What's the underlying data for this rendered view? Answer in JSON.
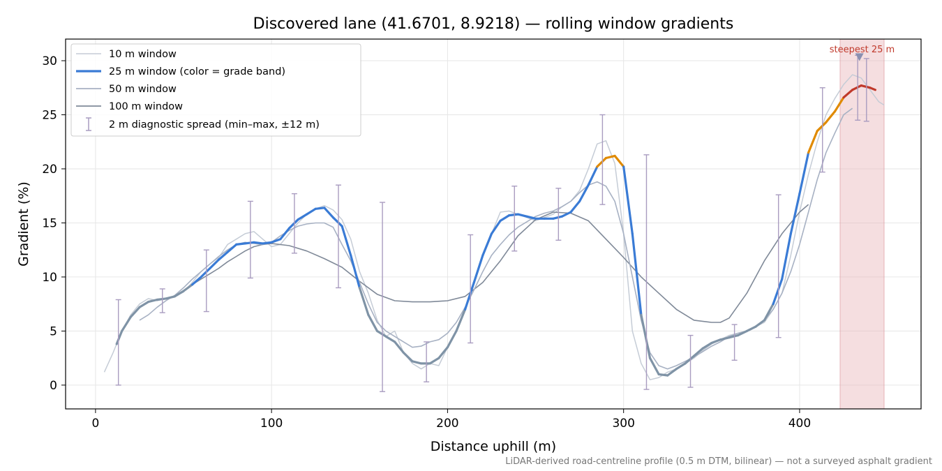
{
  "chart_data": {
    "type": "line",
    "title": "Discovered lane (41.6701, 8.9218) — rolling window gradients",
    "xlabel": "Distance uphill (m)",
    "ylabel": "Gradient (%)",
    "xlim": [
      -17,
      469
    ],
    "ylim": [
      -2.2,
      32
    ],
    "x_ticks": [
      0,
      100,
      200,
      300,
      400
    ],
    "y_ticks": [
      0,
      5,
      10,
      15,
      20,
      25,
      30
    ],
    "grid": true,
    "legend_position": "top-left",
    "footnote": "LiDAR-derived road-centreline profile (0.5 m DTM, bilinear) — not a surveyed asphalt gradient",
    "highlight": {
      "label": "steepest 25 m",
      "x_range": [
        423,
        448
      ],
      "marker_x": 434,
      "marker_y": 30.3,
      "color": "#e8b5bb"
    },
    "grade_band_colors": {
      "gentle": "#7f93a6",
      "moderate": "#3a7bd5",
      "steep": "#e08a00",
      "extreme": "#c0392b"
    },
    "series": [
      {
        "name": "10 m window",
        "color": "#c5ccd6",
        "x": [
          5,
          10,
          15,
          20,
          25,
          30,
          35,
          40,
          45,
          50,
          55,
          60,
          65,
          70,
          75,
          80,
          85,
          90,
          95,
          100,
          105,
          110,
          115,
          120,
          125,
          130,
          135,
          140,
          145,
          150,
          155,
          160,
          165,
          170,
          175,
          180,
          185,
          190,
          195,
          200,
          205,
          210,
          215,
          220,
          225,
          230,
          235,
          240,
          245,
          250,
          255,
          260,
          265,
          270,
          275,
          280,
          285,
          290,
          295,
          300,
          305,
          310,
          315,
          320,
          325,
          330,
          335,
          340,
          345,
          350,
          355,
          360,
          365,
          370,
          375,
          380,
          385,
          390,
          395,
          400,
          405,
          410,
          415,
          420,
          425,
          430,
          435,
          440,
          445,
          448
        ],
        "y": [
          1.2,
          3,
          5,
          6.5,
          7.5,
          8,
          7.8,
          8,
          8.2,
          8.6,
          9.5,
          10.5,
          11.2,
          11.8,
          13,
          13.5,
          14,
          14.2,
          13.5,
          12.8,
          13,
          14,
          15,
          15.8,
          16.3,
          16.6,
          16.2,
          15.3,
          13.5,
          10.5,
          8.5,
          6,
          4.5,
          5,
          3,
          2,
          1.5,
          2,
          1.8,
          3.5,
          5,
          7,
          9.5,
          12,
          14,
          16,
          16.1,
          15.8,
          15.5,
          15.2,
          15.5,
          15.8,
          16.5,
          17,
          18,
          20,
          22.3,
          22.6,
          20.5,
          14,
          5,
          2,
          0.5,
          0.7,
          1.2,
          1.5,
          2,
          2.5,
          3.2,
          3.8,
          4.2,
          4.6,
          4.8,
          5,
          5.4,
          5.8,
          7,
          8.5,
          12,
          16,
          19.5,
          22.5,
          25,
          26.5,
          27.8,
          28.7,
          28.4,
          27.3,
          26.2,
          25.9
        ]
      },
      {
        "name": "25 m window (color = grade band)",
        "color": "#3a7bd5",
        "x": [
          12,
          15,
          20,
          25,
          30,
          35,
          40,
          45,
          50,
          55,
          60,
          65,
          70,
          75,
          80,
          85,
          90,
          95,
          100,
          105,
          110,
          115,
          120,
          125,
          130,
          135,
          140,
          145,
          150,
          155,
          160,
          165,
          170,
          175,
          180,
          185,
          190,
          195,
          200,
          205,
          210,
          215,
          220,
          225,
          230,
          235,
          240,
          245,
          250,
          255,
          260,
          265,
          270,
          275,
          280,
          285,
          290,
          295,
          300,
          305,
          310,
          315,
          320,
          325,
          330,
          335,
          340,
          345,
          350,
          355,
          360,
          365,
          370,
          375,
          380,
          385,
          390,
          395,
          400,
          405,
          410,
          415,
          420,
          425,
          430,
          435,
          440,
          443
        ],
        "y": [
          3.8,
          5,
          6.3,
          7.2,
          7.7,
          7.9,
          8,
          8.2,
          8.7,
          9.3,
          10,
          10.8,
          11.6,
          12.3,
          13,
          13.1,
          13.2,
          13.1,
          13.2,
          13.5,
          14.5,
          15.3,
          15.8,
          16.3,
          16.4,
          15.5,
          14.7,
          12,
          9,
          6.5,
          5,
          4.5,
          4,
          3,
          2.2,
          2,
          2,
          2.5,
          3.5,
          5,
          7,
          9.5,
          12,
          14,
          15.2,
          15.7,
          15.8,
          15.6,
          15.4,
          15.4,
          15.4,
          15.6,
          16,
          17,
          18.5,
          20.2,
          21,
          21.2,
          20.2,
          14,
          6.5,
          2.5,
          1,
          0.9,
          1.5,
          2,
          2.7,
          3.4,
          3.9,
          4.2,
          4.4,
          4.6,
          5,
          5.4,
          6,
          7.5,
          9.8,
          14,
          17.7,
          21.5,
          23.5,
          24.3,
          25.3,
          26.6,
          27.3,
          27.7,
          27.5,
          27.3
        ],
        "bands": [
          "gentle",
          "gentle",
          "gentle",
          "gentle",
          "gentle",
          "gentle",
          "gentle",
          "gentle",
          "gentle",
          "gentle",
          "moderate",
          "moderate",
          "moderate",
          "moderate",
          "moderate",
          "moderate",
          "moderate",
          "moderate",
          "moderate",
          "moderate",
          "moderate",
          "moderate",
          "moderate",
          "moderate",
          "moderate",
          "moderate",
          "moderate",
          "moderate",
          "moderate",
          "gentle",
          "gentle",
          "gentle",
          "gentle",
          "gentle",
          "gentle",
          "gentle",
          "gentle",
          "gentle",
          "gentle",
          "gentle",
          "gentle",
          "moderate",
          "moderate",
          "moderate",
          "moderate",
          "moderate",
          "moderate",
          "moderate",
          "moderate",
          "moderate",
          "moderate",
          "moderate",
          "moderate",
          "moderate",
          "moderate",
          "moderate",
          "steep",
          "steep",
          "steep",
          "moderate",
          "moderate",
          "gentle",
          "gentle",
          "gentle",
          "gentle",
          "gentle",
          "gentle",
          "gentle",
          "gentle",
          "gentle",
          "gentle",
          "gentle",
          "gentle",
          "gentle",
          "gentle",
          "gentle",
          "moderate",
          "moderate",
          "moderate",
          "moderate",
          "steep",
          "steep",
          "steep",
          "steep",
          "extreme",
          "extreme",
          "extreme",
          "extreme"
        ]
      },
      {
        "name": "50 m window",
        "color": "#a7b1c3",
        "x": [
          25,
          30,
          35,
          40,
          45,
          50,
          55,
          60,
          65,
          70,
          75,
          80,
          85,
          90,
          95,
          100,
          105,
          110,
          115,
          120,
          125,
          130,
          135,
          140,
          145,
          150,
          155,
          160,
          165,
          170,
          175,
          180,
          185,
          190,
          195,
          200,
          205,
          210,
          215,
          220,
          225,
          230,
          235,
          240,
          245,
          250,
          255,
          260,
          265,
          270,
          275,
          280,
          285,
          290,
          295,
          300,
          305,
          310,
          315,
          320,
          325,
          330,
          335,
          340,
          345,
          350,
          355,
          360,
          365,
          370,
          375,
          380,
          385,
          390,
          395,
          400,
          405,
          410,
          415,
          420,
          425,
          430
        ],
        "y": [
          6,
          6.5,
          7.2,
          7.8,
          8.3,
          9,
          9.8,
          10.5,
          11.2,
          11.9,
          12.5,
          13,
          13.2,
          13.1,
          13,
          13.2,
          13.8,
          14.3,
          14.7,
          14.9,
          15,
          15,
          14.6,
          13,
          11.5,
          9.5,
          7.5,
          5.8,
          5,
          4.5,
          4,
          3.5,
          3.6,
          4,
          4.2,
          4.8,
          5.8,
          7.2,
          8.8,
          10.5,
          12,
          13,
          13.9,
          14.6,
          15.1,
          15.6,
          15.9,
          16.1,
          16.5,
          17,
          17.8,
          18.5,
          18.8,
          18.4,
          17,
          14,
          10,
          6,
          3,
          1.8,
          1.5,
          1.8,
          2.2,
          2.6,
          3.1,
          3.6,
          4,
          4.5,
          4.8,
          5,
          5.4,
          6,
          7,
          8.5,
          10.5,
          13,
          16,
          19,
          21.5,
          23.3,
          25,
          25.6
        ]
      },
      {
        "name": "100 m window",
        "color": "#7f8998",
        "x": [
          50,
          55,
          60,
          65,
          70,
          75,
          80,
          85,
          90,
          95,
          100,
          110,
          120,
          130,
          140,
          150,
          160,
          170,
          180,
          190,
          200,
          210,
          220,
          230,
          240,
          250,
          260,
          270,
          280,
          290,
          300,
          310,
          320,
          330,
          340,
          350,
          355,
          360,
          370,
          380,
          390,
          400,
          405
        ],
        "y": [
          8.7,
          9.3,
          9.8,
          10.3,
          10.8,
          11.4,
          11.9,
          12.4,
          12.8,
          13,
          13.1,
          12.9,
          12.4,
          11.7,
          10.9,
          9.6,
          8.4,
          7.8,
          7.7,
          7.7,
          7.8,
          8.2,
          9.5,
          11.5,
          13.8,
          15.3,
          16,
          15.9,
          15.2,
          13.5,
          11.8,
          10,
          8.5,
          7,
          6,
          5.8,
          5.8,
          6.2,
          8.5,
          11.5,
          14,
          16,
          16.7
        ]
      }
    ],
    "error_bars": {
      "name": "2 m diagnostic spread (min–max, ±12 m)",
      "color": "#a99cc0",
      "points": [
        {
          "x": 13,
          "lo": 0,
          "hi": 7.9
        },
        {
          "x": 38,
          "lo": 6.7,
          "hi": 8.9
        },
        {
          "x": 63,
          "lo": 6.8,
          "hi": 12.5
        },
        {
          "x": 88,
          "lo": 9.9,
          "hi": 17
        },
        {
          "x": 113,
          "lo": 12.2,
          "hi": 17.7
        },
        {
          "x": 138,
          "lo": 9,
          "hi": 18.5
        },
        {
          "x": 163,
          "lo": -0.6,
          "hi": 16.9
        },
        {
          "x": 188,
          "lo": 0.3,
          "hi": 4
        },
        {
          "x": 213,
          "lo": 3.9,
          "hi": 13.9
        },
        {
          "x": 238,
          "lo": 12.4,
          "hi": 18.4
        },
        {
          "x": 263,
          "lo": 13.4,
          "hi": 18.2
        },
        {
          "x": 288,
          "lo": 16.7,
          "hi": 25
        },
        {
          "x": 313,
          "lo": -0.4,
          "hi": 21.3
        },
        {
          "x": 338,
          "lo": -0.2,
          "hi": 4.6
        },
        {
          "x": 363,
          "lo": 2.3,
          "hi": 5.6
        },
        {
          "x": 388,
          "lo": 4.4,
          "hi": 17.6
        },
        {
          "x": 413,
          "lo": 19.7,
          "hi": 27.5
        },
        {
          "x": 433,
          "lo": 24.5,
          "hi": 30.5
        },
        {
          "x": 438,
          "lo": 24.4,
          "hi": 30.2
        }
      ]
    }
  }
}
